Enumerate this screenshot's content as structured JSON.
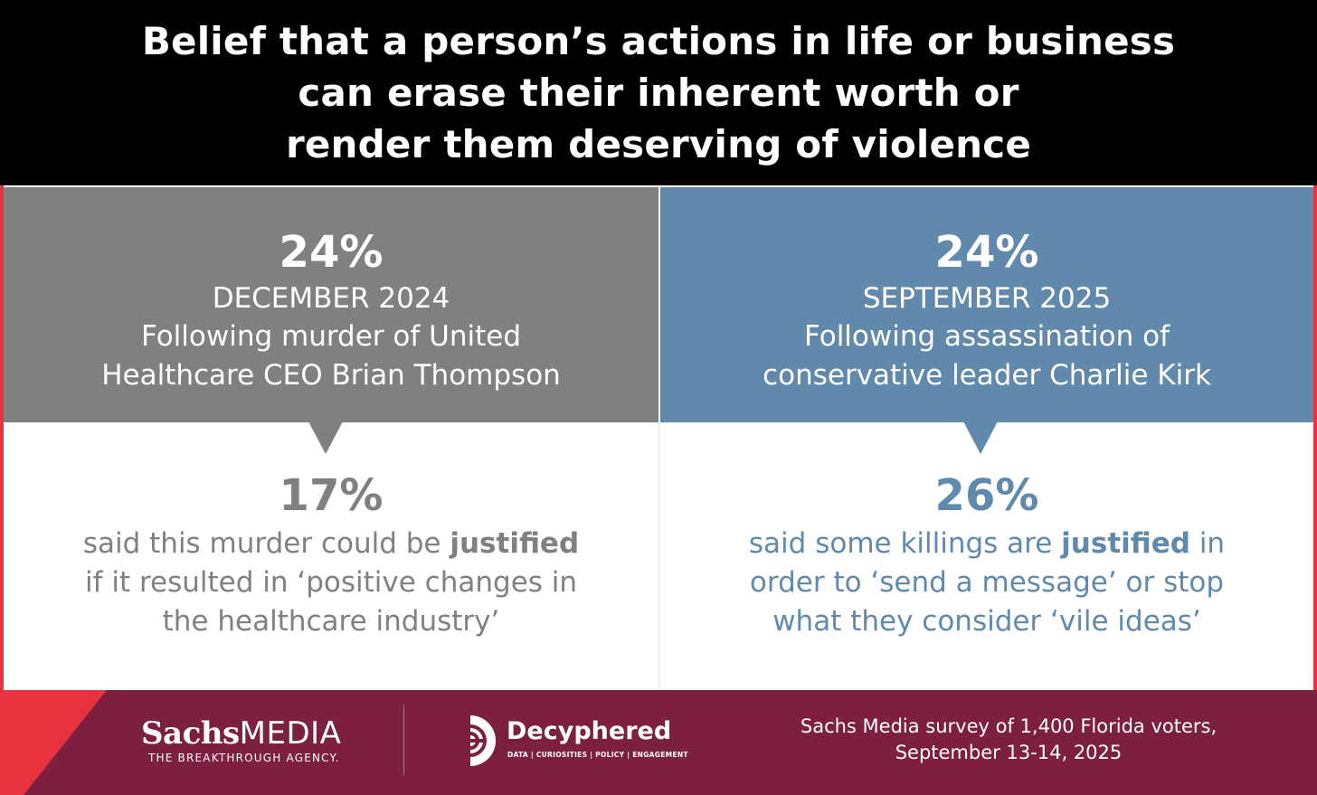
{
  "header": {
    "title_lines": [
      "Belief that a person’s actions in life or business",
      "can erase their inherent worth or",
      "render them deserving of violence"
    ]
  },
  "left_panel": {
    "percent": "24%",
    "date": "DECEMBER 2024",
    "description_lines": [
      "Following murder of United",
      "Healthcare CEO Brian Thompson"
    ],
    "result_percent": "17%",
    "result_text": {
      "l1_a": "said this murder could be ",
      "l1_bold": "justified",
      "l2": "if it resulted in ‘positive changes in",
      "l3": "the healthcare industry’"
    }
  },
  "right_panel": {
    "percent": "24%",
    "date": "SEPTEMBER 2025",
    "description_lines": [
      "Following assassination of",
      "conservative leader Charlie Kirk"
    ],
    "result_percent": "26%",
    "result_text": {
      "l1_a": "said some killings are ",
      "l1_bold": "justified",
      "l1_b": " in",
      "l2": "order to ‘send a message’ or stop",
      "l3": "what they consider ‘vile ideas’"
    }
  },
  "footer": {
    "sachs_name_a": "Sachs",
    "sachs_name_b": "MEDIA",
    "sachs_tagline": "THE BREAKTHROUGH AGENCY.",
    "decyphered_name": "Decyphered",
    "decyphered_tagline": "DATA | CURIOSITIES | POLICY | ENGAGEMENT",
    "source_lines": [
      "Sachs Media survey of 1,400 Florida voters,",
      "September 13-14, 2025"
    ]
  },
  "colors": {
    "header_bg": "#000000",
    "left_panel_bg": "#808080",
    "right_panel_bg": "#6189ab",
    "footer_bg": "#7c1f40",
    "accent_red": "#e8323e"
  },
  "icons": [
    "decyphered-logo-icon"
  ]
}
